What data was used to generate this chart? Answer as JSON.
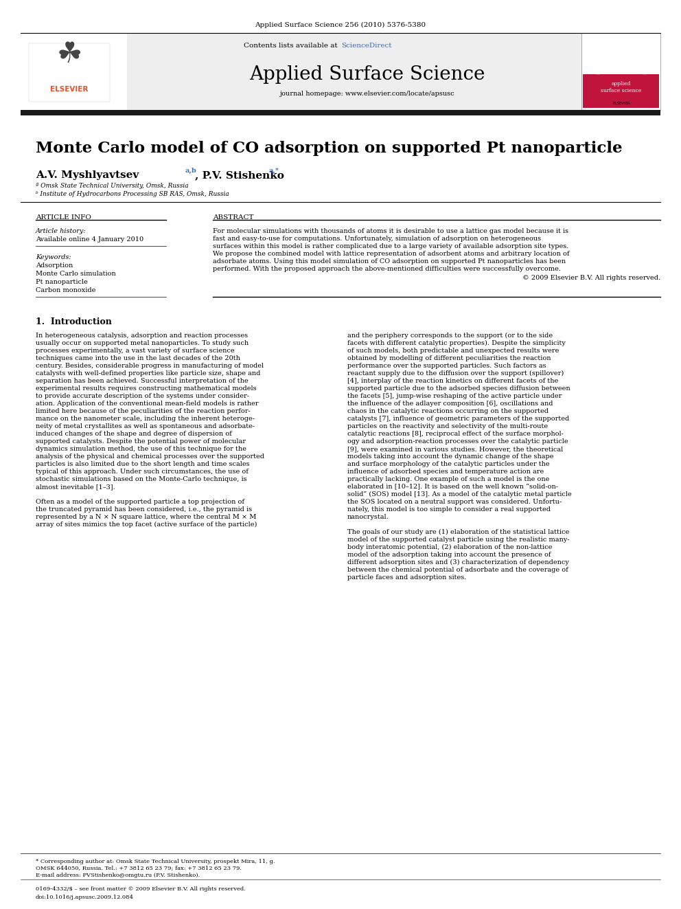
{
  "journal_ref": "Applied Surface Science 256 (2010) 5376-5380",
  "journal_name": "Applied Surface Science",
  "contents_list": "Contents lists available at",
  "science_direct": "ScienceDirect",
  "journal_homepage": "journal homepage: www.elsevier.com/locate/apsusc",
  "paper_title": "Monte Carlo model of CO adsorption on supported Pt nanoparticle",
  "authors": "A.V. Myshlyavtsev",
  "authors_super": "a,b",
  "authors2": ", P.V. Stishenko",
  "authors2_super": "a,*",
  "affil_a": "ª Omsk State Technical University, Omsk, Russia",
  "affil_b": "ᵇ Institute of Hydrocarbons Processing SB RAS, Omsk, Russia",
  "article_info_header": "ARTICLE INFO",
  "abstract_header": "ABSTRACT",
  "article_history_label": "Article history:",
  "available_online": "Available online 4 January 2010",
  "keywords_label": "Keywords:",
  "keywords": [
    "Adsorption",
    "Monte Carlo simulation",
    "Pt nanoparticle",
    "Carbon monoxide"
  ],
  "copyright": "© 2009 Elsevier B.V. All rights reserved.",
  "section1_title": "1.  Introduction",
  "footer_corr": "* Corresponding author at: Omsk State Technical University, prospekt Mira, 11, g.",
  "footer_corr2": "OMSK 644050, Russia. Tel.: +7 3812 65 23 79; fax: +7 3812 65 23 79.",
  "footer_email": "E-mail address: PVStishenko@omgtu.ru (P.V. Stishenko).",
  "footer_issn": "0169-4332/$ – see front matter © 2009 Elsevier B.V. All rights reserved.",
  "footer_doi": "doi:10.1016/j.apsusc.2009.12.084",
  "bg_color": "#eeeeee",
  "black_bar_color": "#1a1a1a",
  "link_color": "#4169b0",
  "elsevier_orange": "#E8502A",
  "red_color": "#c0143c",
  "abstract_lines": [
    "For molecular simulations with thousands of atoms it is desirable to use a lattice gas model because it is",
    "fast and easy-to-use for computations. Unfortunately, simulation of adsorption on heterogeneous",
    "surfaces within this model is rather complicated due to a large variety of available adsorption site types.",
    "We propose the combined model with lattice representation of adsorbent atoms and arbitrary location of",
    "adsorbate atoms. Using this model simulation of CO adsorption on supported Pt nanoparticles has been",
    "performed. With the proposed approach the above-mentioned difficulties were successfully overcome."
  ],
  "intro_left": [
    "In heterogeneous catalysis, adsorption and reaction processes",
    "usually occur on supported metal nanoparticles. To study such",
    "processes experimentally, a vast variety of surface science",
    "techniques came into the use in the last decades of the 20th",
    "century. Besides, considerable progress in manufacturing of model",
    "catalysts with well-defined properties like particle size, shape and",
    "separation has been achieved. Successful interpretation of the",
    "experimental results requires constructing mathematical models",
    "to provide accurate description of the systems under consider-",
    "ation. Application of the conventional mean-field models is rather",
    "limited here because of the peculiarities of the reaction perfor-",
    "mance on the nanometer scale, including the inherent heteroge-",
    "neity of metal crystallites as well as spontaneous and adsorbate-",
    "induced changes of the shape and degree of dispersion of",
    "supported catalysts. Despite the potential power of molecular",
    "dynamics simulation method, the use of this technique for the",
    "analysis of the physical and chemical processes over the supported",
    "particles is also limited due to the short length and time scales",
    "typical of this approach. Under such circumstances, the use of",
    "stochastic simulations based on the Monte-Carlo technique, is",
    "almost inevitable [1–3].",
    "",
    "Often as a model of the supported particle a top projection of",
    "the truncated pyramid has been considered, i.e., the pyramid is",
    "represented by a N × N square lattice, where the central M × M",
    "array of sites mimics the top facet (active surface of the particle)"
  ],
  "intro_right": [
    "and the periphery corresponds to the support (or to the side",
    "facets with different catalytic properties). Despite the simplicity",
    "of such models, both predictable and unexpected results were",
    "obtained by modelling of different peculiarities the reaction",
    "performance over the supported particles. Such factors as",
    "reactant supply due to the diffusion over the support (spillover)",
    "[4], interplay of the reaction kinetics on different facets of the",
    "supported particle due to the adsorbed species diffusion between",
    "the facets [5], jump-wise reshaping of the active particle under",
    "the influence of the adlayer composition [6], oscillations and",
    "chaos in the catalytic reactions occurring on the supported",
    "catalysts [7], influence of geometric parameters of the supported",
    "particles on the reactivity and selectivity of the multi-route",
    "catalytic reactions [8], reciprocal effect of the surface morphol-",
    "ogy and adsorption-reaction processes over the catalytic particle",
    "[9], were examined in various studies. However, the theoretical",
    "models taking into account the dynamic change of the shape",
    "and surface morphology of the catalytic particles under the",
    "influence of adsorbed species and temperature action are",
    "practically lacking. One example of such a model is the one",
    "elaborated in [10–12]. It is based on the well known “solid-on-",
    "solid” (SOS) model [13]. As a model of the catalytic metal particle",
    "the SOS located on a neutral support was considered. Unfortu-",
    "nately, this model is too simple to consider a real supported",
    "nanocrystal.",
    "",
    "The goals of our study are (1) elaboration of the statistical lattice",
    "model of the supported catalyst particle using the realistic many-",
    "body interatomic potential, (2) elaboration of the non-lattice",
    "model of the adsorption taking into account the presence of",
    "different adsorption sites and (3) characterization of dependency",
    "between the chemical potential of adsorbate and the coverage of",
    "particle faces and adsorption sites."
  ]
}
